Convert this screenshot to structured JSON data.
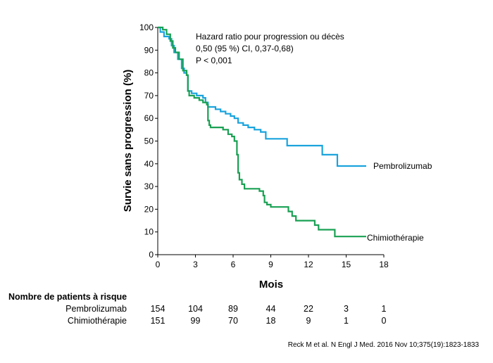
{
  "chart_data": {
    "type": "line",
    "step": true,
    "title": "",
    "xlabel": "Mois",
    "ylabel": "Survie sans progression (%)",
    "xlim": [
      0,
      18
    ],
    "ylim": [
      0,
      100
    ],
    "xticks": [
      0,
      3,
      6,
      9,
      12,
      15,
      18
    ],
    "yticks": [
      0,
      10,
      20,
      30,
      40,
      50,
      60,
      70,
      80,
      90,
      100
    ],
    "grid": false,
    "annotation": [
      "Hazard ratio pour progression ou décès",
      "0,50 (95 %) CI, 0,37-0,68)",
      "P < 0,001"
    ],
    "series": [
      {
        "name": "Pembrolizumab",
        "color": "#1aa3dd",
        "points": [
          [
            0,
            100
          ],
          [
            0.2,
            98
          ],
          [
            0.5,
            96
          ],
          [
            0.9,
            95
          ],
          [
            1.1,
            92
          ],
          [
            1.3,
            89
          ],
          [
            1.6,
            86
          ],
          [
            1.9,
            82
          ],
          [
            2.1,
            80
          ],
          [
            2.3,
            79
          ],
          [
            2.4,
            72
          ],
          [
            2.7,
            71
          ],
          [
            3.1,
            70
          ],
          [
            3.6,
            69
          ],
          [
            3.8,
            67
          ],
          [
            4.0,
            65
          ],
          [
            4.6,
            64
          ],
          [
            5.0,
            63
          ],
          [
            5.4,
            62
          ],
          [
            5.8,
            61
          ],
          [
            6.1,
            60
          ],
          [
            6.4,
            58
          ],
          [
            6.8,
            57
          ],
          [
            7.2,
            56
          ],
          [
            7.7,
            55
          ],
          [
            8.2,
            54
          ],
          [
            8.6,
            51
          ],
          [
            10.3,
            48
          ],
          [
            13.1,
            44
          ],
          [
            14.3,
            39
          ],
          [
            16.6,
            39
          ]
        ]
      },
      {
        "name": "Chimiothérapie",
        "color": "#19a053",
        "points": [
          [
            0,
            100
          ],
          [
            0.4,
            99
          ],
          [
            0.7,
            97
          ],
          [
            1.0,
            94
          ],
          [
            1.2,
            91
          ],
          [
            1.4,
            89
          ],
          [
            1.7,
            86
          ],
          [
            2.0,
            81
          ],
          [
            2.3,
            79
          ],
          [
            2.4,
            72
          ],
          [
            2.5,
            70
          ],
          [
            2.9,
            69
          ],
          [
            3.3,
            68
          ],
          [
            3.6,
            67
          ],
          [
            3.9,
            66
          ],
          [
            4.0,
            59
          ],
          [
            4.1,
            57
          ],
          [
            4.2,
            56
          ],
          [
            4.8,
            56
          ],
          [
            5.2,
            55
          ],
          [
            5.6,
            53
          ],
          [
            5.9,
            52
          ],
          [
            6.1,
            50
          ],
          [
            6.3,
            44
          ],
          [
            6.4,
            36
          ],
          [
            6.5,
            33
          ],
          [
            6.7,
            31
          ],
          [
            6.9,
            29
          ],
          [
            7.9,
            29
          ],
          [
            8.1,
            28
          ],
          [
            8.4,
            26
          ],
          [
            8.5,
            23
          ],
          [
            8.7,
            22
          ],
          [
            9.0,
            21
          ],
          [
            10.4,
            19
          ],
          [
            10.7,
            17
          ],
          [
            11.0,
            15
          ],
          [
            12.5,
            13
          ],
          [
            12.8,
            11
          ],
          [
            14.1,
            8
          ],
          [
            16.6,
            8
          ]
        ]
      }
    ]
  },
  "risk_table": {
    "title": "Nombre de patients à risque",
    "months": [
      0,
      3,
      6,
      9,
      12,
      15,
      18
    ],
    "rows": [
      {
        "label": "Pembrolizumab",
        "values": [
          "154",
          "104",
          "89",
          "44",
          "22",
          "3",
          "1"
        ]
      },
      {
        "label": "Chimiothérapie",
        "values": [
          "151",
          "99",
          "70",
          "18",
          "9",
          "1",
          "0"
        ]
      }
    ]
  },
  "citation": "Reck M et al. N Engl J Med. 2016 Nov 10;375(19):1823-1833"
}
